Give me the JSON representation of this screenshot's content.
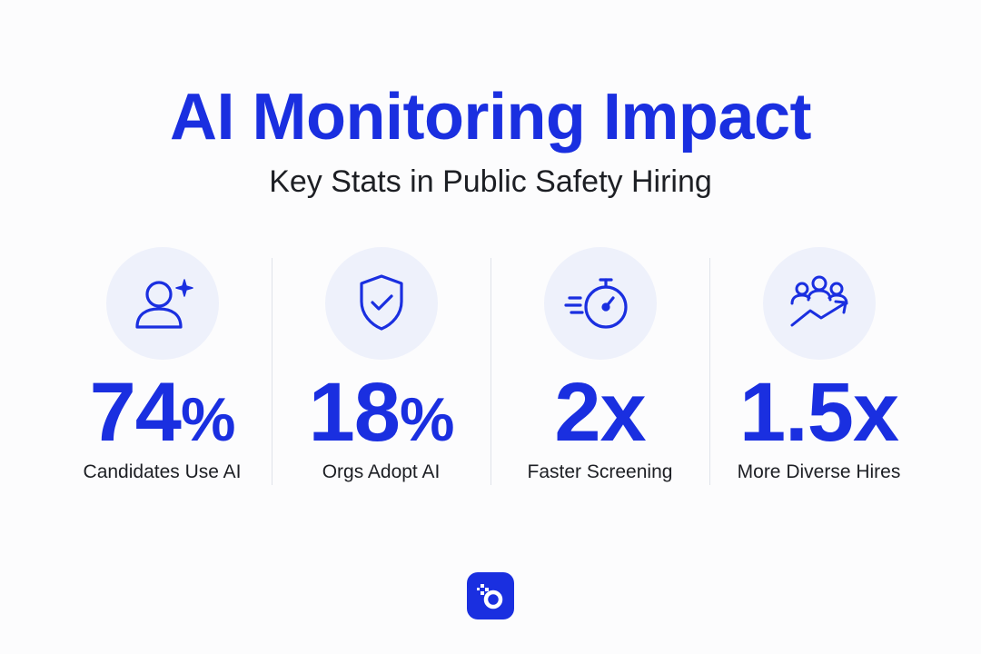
{
  "header": {
    "title": "AI Monitoring Impact",
    "subtitle": "Key Stats in Public Safety Hiring"
  },
  "colors": {
    "accent": "#1a2fe0",
    "text": "#1d1f24",
    "icon_bg": "#eef1fb",
    "divider": "#dfe3ea"
  },
  "stats": [
    {
      "icon": "user-sparkle-icon",
      "value": "74%",
      "label": "Candidates Use AI"
    },
    {
      "icon": "shield-check-icon",
      "value": "18%",
      "label": "Orgs Adopt AI"
    },
    {
      "icon": "stopwatch-speed-icon",
      "value": "2x",
      "label": "Faster Screening"
    },
    {
      "icon": "group-growth-icon",
      "value": "1.5x",
      "label": "More Diverse Hires"
    }
  ],
  "footer": {
    "logo": "brand-logo-icon"
  }
}
